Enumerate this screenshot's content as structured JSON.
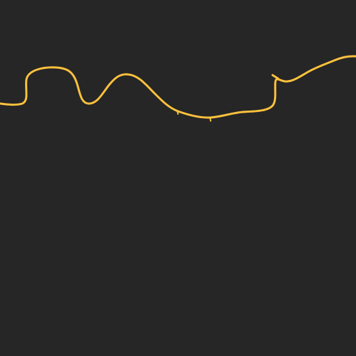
{
  "background_color": "#262626",
  "stroke_color": "#ffc23d",
  "shape": "wavy-line"
}
